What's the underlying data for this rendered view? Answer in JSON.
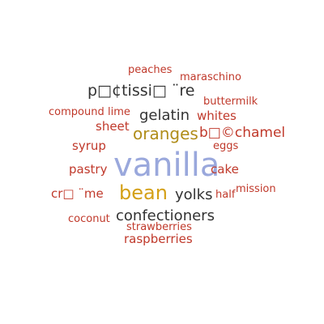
{
  "colors": {
    "red": "#c0392b",
    "dark": "#333333",
    "gold": "#d4a017",
    "olive": "#b08d1a",
    "blue": "#9aa8dc"
  },
  "words": [
    {
      "text": "peaches",
      "color": "#c0392b"
    },
    {
      "text": "maraschino",
      "color": "#c0392b"
    },
    {
      "text": "p□¢tissi□ ¨re",
      "color": "#333333"
    },
    {
      "text": "buttermilk",
      "color": "#c0392b"
    },
    {
      "text": "compound",
      "color": "#c0392b"
    },
    {
      "text": "lime",
      "color": "#c0392b"
    },
    {
      "text": "gelatin",
      "color": "#333333"
    },
    {
      "text": "whites",
      "color": "#c0392b"
    },
    {
      "text": "sheet",
      "color": "#c0392b"
    },
    {
      "text": "oranges",
      "color": "#b08d1a"
    },
    {
      "text": "b□©chamel",
      "color": "#c0392b"
    },
    {
      "text": "syrup",
      "color": "#c0392b"
    },
    {
      "text": "eggs",
      "color": "#c0392b"
    },
    {
      "text": "pastry",
      "color": "#c0392b"
    },
    {
      "text": "vanilla",
      "color": "#9aa8dc"
    },
    {
      "text": "cake",
      "color": "#c0392b"
    },
    {
      "text": "cr□ ¨me",
      "color": "#c0392b"
    },
    {
      "text": "bean",
      "color": "#d4a017"
    },
    {
      "text": "yolks",
      "color": "#333333"
    },
    {
      "text": "half",
      "color": "#c0392b"
    },
    {
      "text": "mission",
      "color": "#c0392b"
    },
    {
      "text": "coconut",
      "color": "#c0392b"
    },
    {
      "text": "confectioners",
      "color": "#333333"
    },
    {
      "text": "strawberries",
      "color": "#c0392b"
    },
    {
      "text": "raspberries",
      "color": "#c0392b"
    }
  ]
}
